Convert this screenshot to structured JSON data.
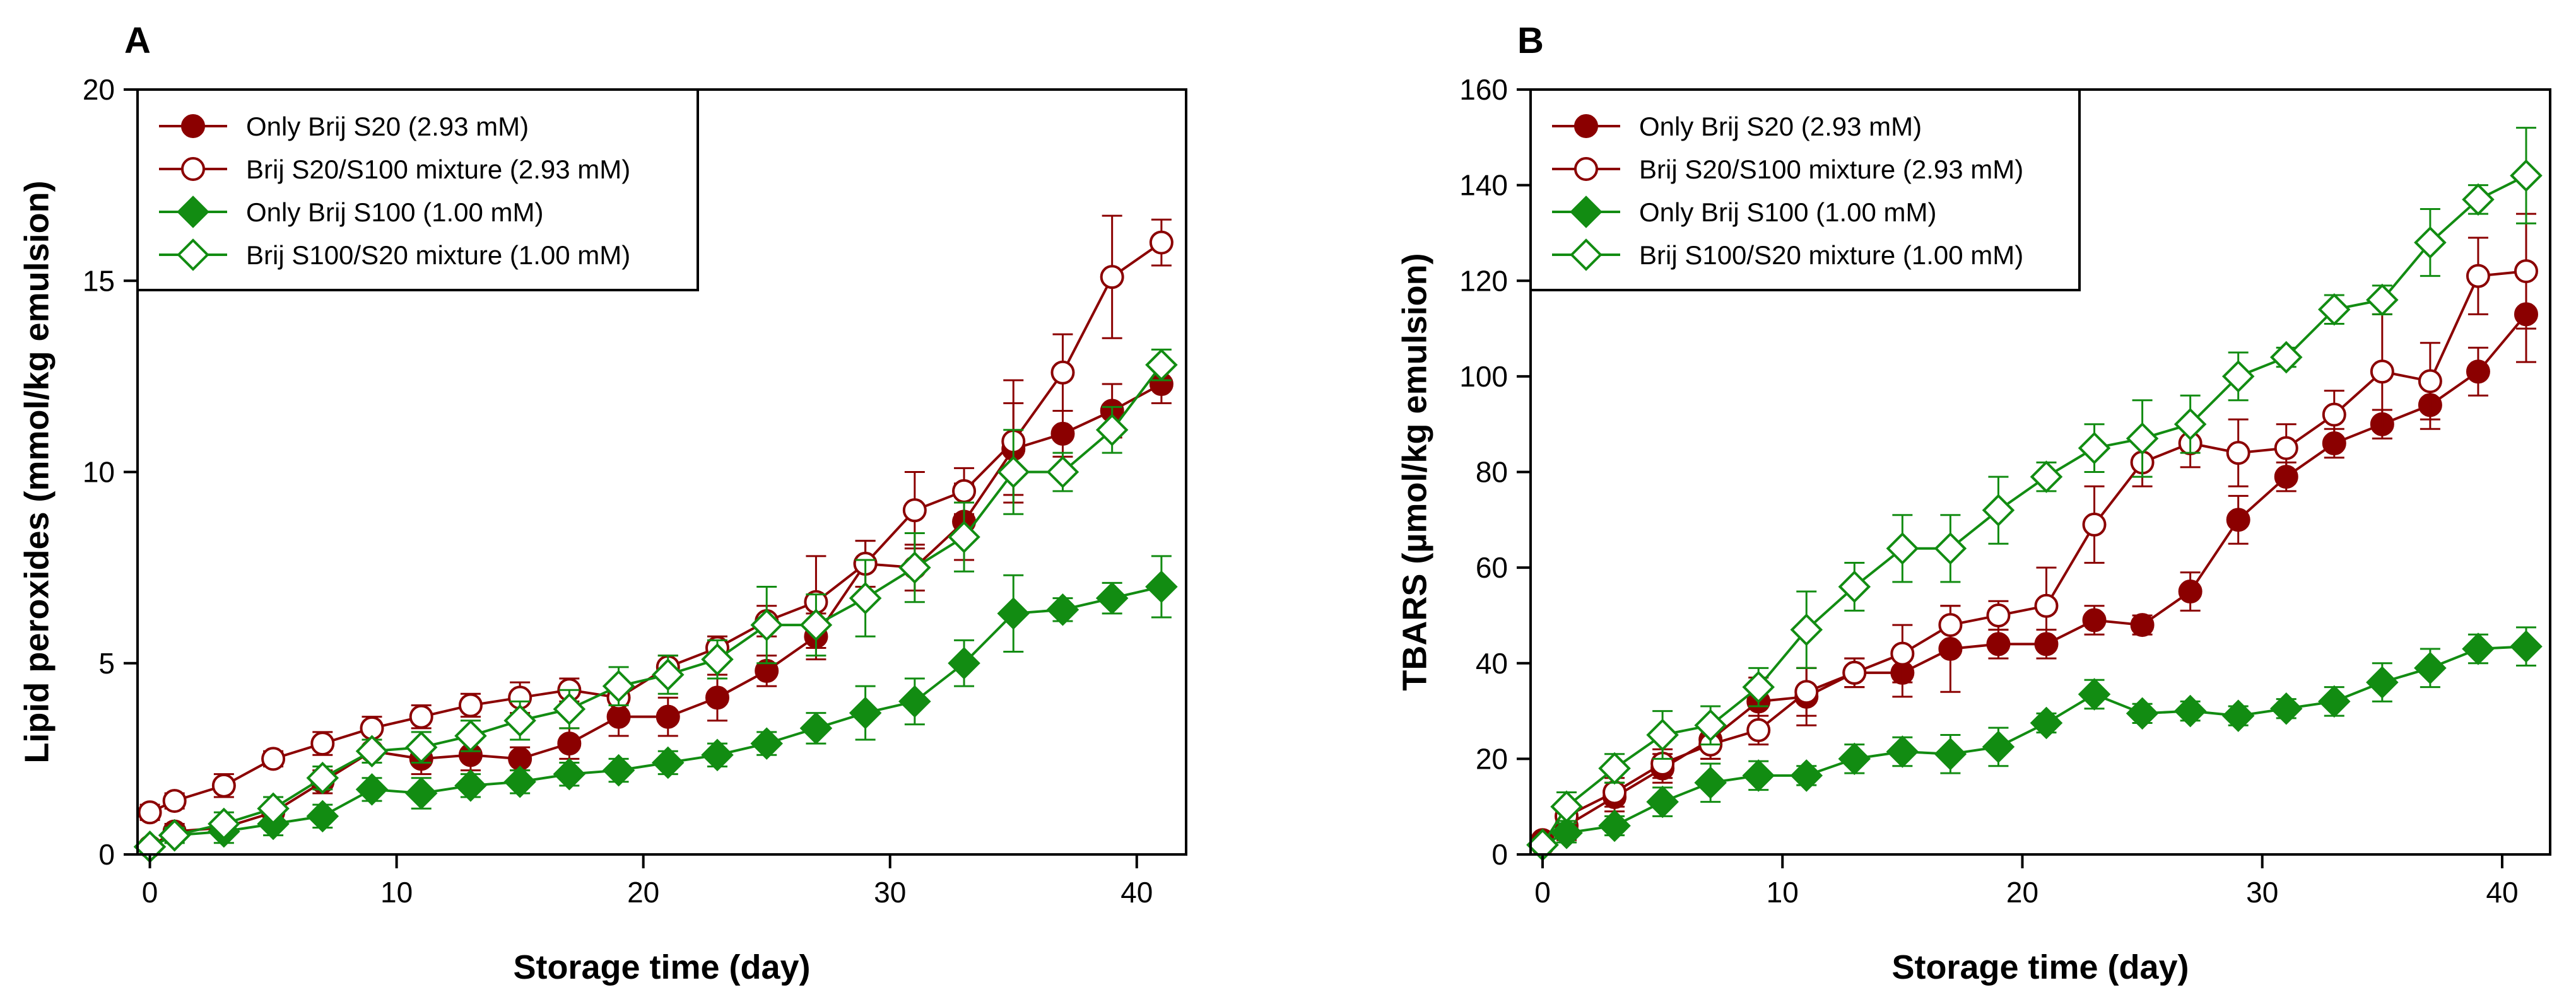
{
  "colors": {
    "red": "#8b0000",
    "green": "#128c12",
    "frame": "#000000"
  },
  "chart_data": [
    {
      "type": "line",
      "panel_label": "A",
      "title": "",
      "xlabel": "Storage time (day)",
      "ylabel": "Lipid peroxides (mmol/kg emulsion)",
      "xlim": [
        -0.5,
        42
      ],
      "ylim": [
        0,
        20
      ],
      "xticks": [
        0,
        10,
        20,
        30,
        40
      ],
      "yticks": [
        0,
        5,
        10,
        15,
        20
      ],
      "grid": false,
      "legend_position": "top-left",
      "series": [
        {
          "name": "Only Brij S20 (2.93 mM)",
          "color": "red",
          "marker": "circle",
          "filled": true,
          "x": [
            0,
            1,
            3,
            5,
            7,
            9,
            11,
            13,
            15,
            17,
            19,
            21,
            23,
            25,
            27,
            29,
            31,
            33,
            35,
            37,
            39,
            41
          ],
          "y": [
            0.2,
            0.6,
            0.7,
            1.1,
            1.9,
            2.7,
            2.5,
            2.6,
            2.5,
            2.9,
            3.6,
            3.6,
            4.1,
            4.8,
            5.7,
            7.6,
            7.5,
            8.7,
            10.6,
            11.0,
            11.6,
            12.3
          ],
          "err": [
            0.1,
            0.2,
            0.2,
            0.2,
            0.3,
            0.3,
            0.4,
            0.4,
            0.3,
            0.4,
            0.5,
            0.5,
            0.6,
            0.4,
            0.6,
            0.6,
            0.6,
            1.0,
            1.2,
            0.6,
            0.7,
            0.5
          ]
        },
        {
          "name": "Brij S20/S100 mixture (2.93 mM)",
          "color": "red",
          "marker": "circle",
          "filled": false,
          "x": [
            0,
            1,
            3,
            5,
            7,
            9,
            11,
            13,
            15,
            17,
            19,
            21,
            23,
            25,
            27,
            29,
            31,
            33,
            35,
            37,
            39,
            41
          ],
          "y": [
            1.1,
            1.4,
            1.8,
            2.5,
            2.9,
            3.3,
            3.6,
            3.9,
            4.1,
            4.3,
            4.1,
            4.9,
            5.4,
            6.1,
            6.6,
            7.6,
            9.0,
            9.5,
            10.8,
            12.6,
            15.1,
            16.0
          ],
          "err": [
            0.2,
            0.2,
            0.3,
            0.2,
            0.3,
            0.3,
            0.3,
            0.3,
            0.4,
            0.3,
            0.4,
            0.3,
            0.3,
            0.4,
            1.2,
            0.6,
            1.0,
            0.6,
            1.6,
            1.0,
            1.6,
            0.6
          ]
        },
        {
          "name": "Only Brij S100 (1.00 mM)",
          "color": "green",
          "marker": "diamond",
          "filled": true,
          "x": [
            0,
            1,
            3,
            5,
            7,
            9,
            11,
            13,
            15,
            17,
            19,
            21,
            23,
            25,
            27,
            29,
            31,
            33,
            35,
            37,
            39,
            41
          ],
          "y": [
            0.2,
            0.5,
            0.6,
            0.8,
            1.0,
            1.7,
            1.6,
            1.8,
            1.9,
            2.1,
            2.2,
            2.4,
            2.6,
            2.9,
            3.3,
            3.7,
            4.0,
            5.0,
            6.3,
            6.4,
            6.7,
            7.0
          ],
          "err": [
            0.1,
            0.2,
            0.3,
            0.3,
            0.3,
            0.3,
            0.4,
            0.3,
            0.3,
            0.3,
            0.3,
            0.3,
            0.3,
            0.3,
            0.4,
            0.7,
            0.6,
            0.6,
            1.0,
            0.3,
            0.4,
            0.8
          ]
        },
        {
          "name": "Brij S100/S20 mixture (1.00 mM)",
          "color": "green",
          "marker": "diamond",
          "filled": false,
          "x": [
            0,
            1,
            3,
            5,
            7,
            9,
            11,
            13,
            15,
            17,
            19,
            21,
            23,
            25,
            27,
            29,
            31,
            33,
            35,
            37,
            39,
            41
          ],
          "y": [
            0.2,
            0.5,
            0.8,
            1.2,
            2.0,
            2.7,
            2.8,
            3.1,
            3.5,
            3.8,
            4.4,
            4.7,
            5.1,
            6.0,
            6.0,
            6.7,
            7.5,
            8.3,
            10.0,
            10.0,
            11.1,
            12.8
          ],
          "err": [
            0.1,
            0.2,
            0.3,
            0.3,
            0.3,
            0.3,
            0.4,
            0.4,
            0.5,
            0.5,
            0.5,
            0.5,
            0.5,
            1.0,
            0.8,
            1.0,
            0.9,
            0.9,
            1.1,
            0.5,
            0.6,
            0.4
          ]
        }
      ]
    },
    {
      "type": "line",
      "panel_label": "B",
      "title": "",
      "xlabel": "Storage time (day)",
      "ylabel": "TBARS (µmol/kg emulsion)",
      "xlim": [
        -0.5,
        42
      ],
      "ylim": [
        0,
        160
      ],
      "xticks": [
        0,
        10,
        20,
        30,
        40
      ],
      "yticks": [
        0,
        20,
        40,
        60,
        80,
        100,
        120,
        140,
        160
      ],
      "grid": false,
      "legend_position": "top-left",
      "series": [
        {
          "name": "Only Brij S20 (2.93 mM)",
          "color": "red",
          "marker": "circle",
          "filled": true,
          "x": [
            0,
            1,
            3,
            5,
            7,
            9,
            11,
            13,
            15,
            17,
            19,
            21,
            23,
            25,
            27,
            29,
            31,
            33,
            35,
            37,
            39,
            41
          ],
          "y": [
            3,
            6,
            12,
            18,
            24,
            32,
            33,
            38,
            38,
            43,
            44,
            44,
            49,
            48,
            55,
            70,
            79,
            86,
            90,
            94,
            101,
            113
          ],
          "err": [
            1,
            3,
            3,
            3,
            4,
            5,
            6,
            3,
            5,
            9,
            3,
            3,
            3,
            2,
            4,
            5,
            3,
            3,
            3,
            5,
            5,
            10
          ]
        },
        {
          "name": "Brij S20/S100 mixture (2.93 mM)",
          "color": "red",
          "marker": "circle",
          "filled": false,
          "x": [
            0,
            1,
            3,
            5,
            7,
            9,
            11,
            13,
            15,
            17,
            19,
            21,
            23,
            25,
            27,
            29,
            31,
            33,
            35,
            37,
            39,
            41
          ],
          "y": [
            2,
            8,
            13,
            19,
            23,
            26,
            34,
            38,
            42,
            48,
            50,
            52,
            69,
            82,
            86,
            84,
            85,
            92,
            101,
            99,
            121,
            122
          ],
          "err": [
            1,
            3,
            3,
            3,
            3,
            3,
            5,
            3,
            6,
            4,
            3,
            8,
            8,
            5,
            5,
            7,
            5,
            5,
            12,
            8,
            8,
            12
          ]
        },
        {
          "name": "Only Brij S100 (1.00 mM)",
          "color": "green",
          "marker": "diamond",
          "filled": true,
          "x": [
            0,
            1,
            3,
            5,
            7,
            9,
            11,
            13,
            15,
            17,
            19,
            21,
            23,
            25,
            27,
            29,
            31,
            33,
            35,
            37,
            39,
            41
          ],
          "y": [
            2,
            4.5,
            6,
            11,
            15,
            16.5,
            16.5,
            20,
            21.5,
            21,
            22.5,
            27.5,
            33.5,
            29.5,
            30,
            29,
            30.5,
            32,
            36,
            39,
            43,
            43.5
          ],
          "err": [
            1,
            2,
            2,
            3,
            4,
            3,
            2,
            3,
            3,
            4,
            4,
            2,
            3,
            2,
            2,
            2,
            2,
            3,
            4,
            4,
            3,
            4
          ]
        },
        {
          "name": "Brij S100/S20 mixture (1.00 mM)",
          "color": "green",
          "marker": "diamond",
          "filled": false,
          "x": [
            0,
            1,
            3,
            5,
            7,
            9,
            11,
            13,
            15,
            17,
            19,
            21,
            23,
            25,
            27,
            29,
            31,
            33,
            35,
            37,
            39,
            41
          ],
          "y": [
            2,
            10,
            18,
            25,
            27,
            35,
            47,
            56,
            64,
            64,
            72,
            79,
            85,
            87,
            90,
            100,
            104,
            114,
            116,
            128,
            137,
            142
          ],
          "err": [
            1,
            3,
            3,
            5,
            4,
            4,
            8,
            5,
            7,
            7,
            7,
            3,
            5,
            8,
            6,
            5,
            2,
            3,
            3,
            7,
            3,
            10
          ]
        }
      ]
    }
  ]
}
